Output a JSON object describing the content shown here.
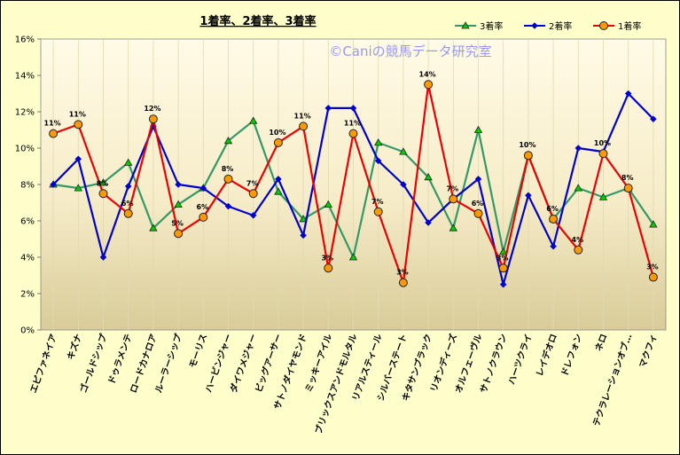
{
  "chart_data": {
    "type": "line",
    "title": "1着率、2着率、3着率",
    "watermark": "©Caniの競馬データ研究室",
    "ylim": [
      0,
      16
    ],
    "yticks": [
      "0%",
      "2%",
      "4%",
      "6%",
      "8%",
      "10%",
      "12%",
      "14%",
      "16%"
    ],
    "grid": "vertical",
    "legend_placement": "top-right",
    "categories": [
      "エピファネイア",
      "キズナ",
      "ゴールドシップ",
      "ドゥラメンテ",
      "ロードカナロア",
      "ルーラーシップ",
      "モーリス",
      "ハービンジャー",
      "ダイワメジャー",
      "ビッグアーサー",
      "サトノダイヤモンド",
      "ミッキーアイル",
      "ブリックスアンドモルタル",
      "リアルスティール",
      "シルバーステート",
      "キタサンブラック",
      "リオンディーズ",
      "オルフェーヴル",
      "サトノクラウン",
      "ハーツクライ",
      "レイデオロ",
      "ドレフォン",
      "ネロ",
      "テクラレーションオブ…",
      "マクフィ"
    ],
    "series": [
      {
        "name": "3着率",
        "color": "#339966",
        "marker": "triangle",
        "values": [
          8.0,
          7.8,
          8.1,
          9.2,
          5.6,
          6.9,
          7.8,
          10.4,
          11.5,
          7.6,
          6.1,
          6.9,
          4.0,
          10.3,
          9.8,
          8.4,
          5.6,
          11.0,
          4.3,
          9.6,
          6.1,
          7.8,
          7.3,
          7.8,
          5.8
        ]
      },
      {
        "name": "2着率",
        "color": "#0000cc",
        "marker": "diamond",
        "values": [
          8.0,
          9.4,
          4.0,
          7.9,
          11.2,
          8.0,
          7.8,
          6.8,
          6.3,
          8.3,
          5.2,
          12.2,
          12.2,
          9.3,
          8.0,
          5.9,
          7.2,
          8.3,
          2.5,
          7.4,
          4.6,
          10.0,
          9.8,
          13.0,
          11.6
        ]
      },
      {
        "name": "1着率",
        "color": "#ee0000",
        "marker": "circle",
        "values": [
          10.8,
          11.3,
          7.5,
          6.4,
          11.6,
          5.3,
          6.2,
          8.3,
          7.5,
          10.3,
          11.2,
          3.4,
          10.8,
          6.5,
          2.6,
          13.5,
          7.2,
          6.4,
          3.4,
          9.6,
          6.1,
          4.4,
          9.7,
          7.8,
          2.9
        ]
      }
    ],
    "data_labels": [
      "11%",
      "11%",
      "8%",
      "6%",
      "12%",
      "5%",
      "6%",
      "8%",
      "7%",
      "10%",
      "11%",
      "3%",
      "11%",
      "7%",
      "3%",
      "14%",
      "7%",
      "6%",
      "3%",
      "10%",
      "6%",
      "4%",
      "10%",
      "8%",
      "3%"
    ]
  }
}
